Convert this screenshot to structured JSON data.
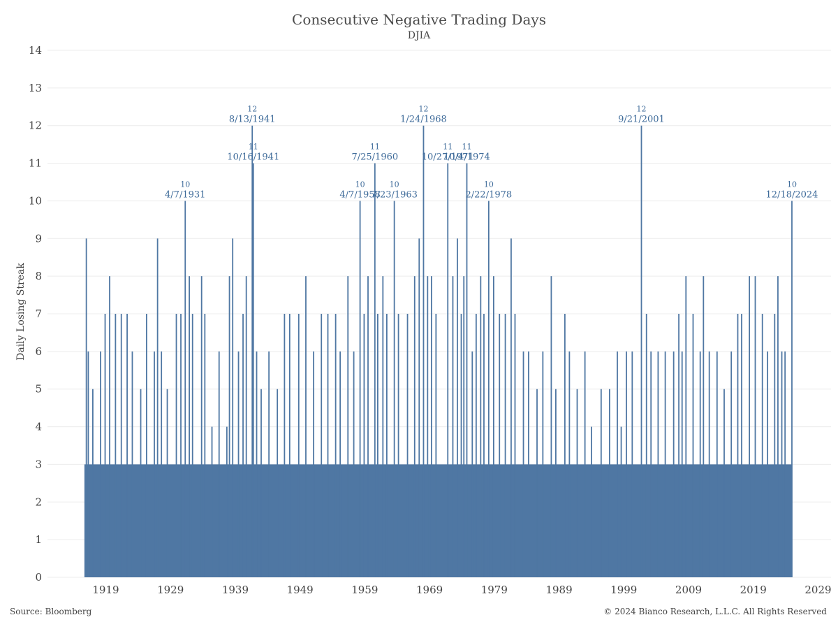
{
  "chart_data": {
    "type": "bar",
    "title": "Consecutive Negative Trading Days",
    "subtitle": "DJIA",
    "ylabel": "Daily Losing Streak",
    "xlabel": "",
    "xlim": [
      1910.0,
      2031.0
    ],
    "ylim": [
      0,
      14
    ],
    "y_ticks": [
      0,
      1,
      2,
      3,
      4,
      5,
      6,
      7,
      8,
      9,
      10,
      11,
      12,
      13,
      14
    ],
    "x_ticks": [
      1919,
      1929,
      1939,
      1949,
      1959,
      1969,
      1979,
      1989,
      1999,
      2009,
      2019,
      2029
    ],
    "grid": true,
    "bar_color": "#4f77a3",
    "label_color": "#3d6a99",
    "data_start_year": 1915.7,
    "data_end_year": 2024.97,
    "baseline_streak": 3,
    "series": [
      {
        "values": [
          {
            "x": 1916.0,
            "y": 9
          },
          {
            "x": 1916.3,
            "y": 6
          },
          {
            "x": 1916.6,
            "y": 2
          },
          {
            "x": 1917.0,
            "y": 5
          },
          {
            "x": 1918.2,
            "y": 6
          },
          {
            "x": 1918.9,
            "y": 7
          },
          {
            "x": 1919.6,
            "y": 8
          },
          {
            "x": 1920.5,
            "y": 7
          },
          {
            "x": 1921.4,
            "y": 7
          },
          {
            "x": 1922.3,
            "y": 7
          },
          {
            "x": 1923.1,
            "y": 6
          },
          {
            "x": 1924.4,
            "y": 5
          },
          {
            "x": 1925.3,
            "y": 7
          },
          {
            "x": 1926.5,
            "y": 6
          },
          {
            "x": 1927.6,
            "y": 6
          },
          {
            "x": 1927.0,
            "y": 9
          },
          {
            "x": 1928.5,
            "y": 5
          },
          {
            "x": 1929.9,
            "y": 7
          },
          {
            "x": 1930.6,
            "y": 7
          },
          {
            "x": 1931.27,
            "y": 10
          },
          {
            "x": 1931.9,
            "y": 8
          },
          {
            "x": 1932.4,
            "y": 7
          },
          {
            "x": 1933.8,
            "y": 8
          },
          {
            "x": 1934.3,
            "y": 7
          },
          {
            "x": 1935.4,
            "y": 4
          },
          {
            "x": 1936.5,
            "y": 6
          },
          {
            "x": 1937.7,
            "y": 4
          },
          {
            "x": 1938.1,
            "y": 8
          },
          {
            "x": 1938.6,
            "y": 9
          },
          {
            "x": 1939.5,
            "y": 6
          },
          {
            "x": 1940.2,
            "y": 7
          },
          {
            "x": 1940.7,
            "y": 8
          },
          {
            "x": 1941.62,
            "y": 12
          },
          {
            "x": 1941.79,
            "y": 11
          },
          {
            "x": 1942.3,
            "y": 6
          },
          {
            "x": 1943.0,
            "y": 5
          },
          {
            "x": 1944.2,
            "y": 6
          },
          {
            "x": 1945.5,
            "y": 5
          },
          {
            "x": 1946.6,
            "y": 7
          },
          {
            "x": 1947.4,
            "y": 7
          },
          {
            "x": 1948.8,
            "y": 7
          },
          {
            "x": 1949.9,
            "y": 8
          },
          {
            "x": 1951.1,
            "y": 6
          },
          {
            "x": 1952.3,
            "y": 7
          },
          {
            "x": 1953.3,
            "y": 7
          },
          {
            "x": 1954.5,
            "y": 7
          },
          {
            "x": 1955.2,
            "y": 6
          },
          {
            "x": 1956.4,
            "y": 8
          },
          {
            "x": 1957.3,
            "y": 6
          },
          {
            "x": 1958.27,
            "y": 10
          },
          {
            "x": 1958.9,
            "y": 7
          },
          {
            "x": 1959.5,
            "y": 8
          },
          {
            "x": 1960.56,
            "y": 11
          },
          {
            "x": 1961.0,
            "y": 7
          },
          {
            "x": 1961.8,
            "y": 8
          },
          {
            "x": 1962.4,
            "y": 7
          },
          {
            "x": 1963.56,
            "y": 10
          },
          {
            "x": 1964.2,
            "y": 7
          },
          {
            "x": 1965.6,
            "y": 7
          },
          {
            "x": 1966.7,
            "y": 8
          },
          {
            "x": 1967.4,
            "y": 9
          },
          {
            "x": 1968.07,
            "y": 12
          },
          {
            "x": 1968.7,
            "y": 8
          },
          {
            "x": 1969.3,
            "y": 8
          },
          {
            "x": 1970.0,
            "y": 7
          },
          {
            "x": 1971.82,
            "y": 11
          },
          {
            "x": 1972.6,
            "y": 8
          },
          {
            "x": 1973.3,
            "y": 9
          },
          {
            "x": 1973.9,
            "y": 7
          },
          {
            "x": 1974.3,
            "y": 8
          },
          {
            "x": 1974.76,
            "y": 11
          },
          {
            "x": 1975.6,
            "y": 6
          },
          {
            "x": 1976.2,
            "y": 7
          },
          {
            "x": 1976.9,
            "y": 8
          },
          {
            "x": 1977.4,
            "y": 7
          },
          {
            "x": 1978.14,
            "y": 10
          },
          {
            "x": 1978.9,
            "y": 8
          },
          {
            "x": 1979.8,
            "y": 7
          },
          {
            "x": 1980.7,
            "y": 7
          },
          {
            "x": 1981.6,
            "y": 9
          },
          {
            "x": 1982.2,
            "y": 7
          },
          {
            "x": 1983.5,
            "y": 6
          },
          {
            "x": 1984.3,
            "y": 6
          },
          {
            "x": 1985.6,
            "y": 5
          },
          {
            "x": 1986.5,
            "y": 6
          },
          {
            "x": 1987.8,
            "y": 8
          },
          {
            "x": 1988.5,
            "y": 5
          },
          {
            "x": 1989.9,
            "y": 7
          },
          {
            "x": 1990.6,
            "y": 6
          },
          {
            "x": 1991.8,
            "y": 5
          },
          {
            "x": 1993.0,
            "y": 6
          },
          {
            "x": 1994.0,
            "y": 4
          },
          {
            "x": 1995.5,
            "y": 5
          },
          {
            "x": 1996.8,
            "y": 5
          },
          {
            "x": 1998.0,
            "y": 6
          },
          {
            "x": 1998.6,
            "y": 4
          },
          {
            "x": 1999.4,
            "y": 6
          },
          {
            "x": 2000.3,
            "y": 6
          },
          {
            "x": 2001.72,
            "y": 12
          },
          {
            "x": 2002.5,
            "y": 7
          },
          {
            "x": 2003.2,
            "y": 6
          },
          {
            "x": 2004.3,
            "y": 6
          },
          {
            "x": 2005.4,
            "y": 6
          },
          {
            "x": 2006.7,
            "y": 6
          },
          {
            "x": 2007.5,
            "y": 7
          },
          {
            "x": 2008.0,
            "y": 6
          },
          {
            "x": 2008.6,
            "y": 8
          },
          {
            "x": 2009.7,
            "y": 7
          },
          {
            "x": 2010.8,
            "y": 6
          },
          {
            "x": 2011.3,
            "y": 8
          },
          {
            "x": 2012.2,
            "y": 6
          },
          {
            "x": 2013.4,
            "y": 6
          },
          {
            "x": 2014.5,
            "y": 5
          },
          {
            "x": 2015.6,
            "y": 6
          },
          {
            "x": 2016.6,
            "y": 7
          },
          {
            "x": 2017.2,
            "y": 7
          },
          {
            "x": 2018.4,
            "y": 8
          },
          {
            "x": 2019.3,
            "y": 8
          },
          {
            "x": 2020.4,
            "y": 7
          },
          {
            "x": 2021.2,
            "y": 6
          },
          {
            "x": 2022.3,
            "y": 7
          },
          {
            "x": 2022.8,
            "y": 8
          },
          {
            "x": 2023.4,
            "y": 6
          },
          {
            "x": 2023.9,
            "y": 6
          },
          {
            "x": 2024.96,
            "y": 10
          }
        ]
      }
    ],
    "annotations": [
      {
        "x": 1931.27,
        "y": 10,
        "value": "10",
        "date": "4/7/1931"
      },
      {
        "x": 1941.62,
        "y": 12,
        "value": "12",
        "date": "8/13/1941"
      },
      {
        "x": 1941.79,
        "y": 11,
        "value": "11",
        "date": "10/16/1941"
      },
      {
        "x": 1958.27,
        "y": 10,
        "value": "10",
        "date": "4/7/1958"
      },
      {
        "x": 1960.56,
        "y": 11,
        "value": "11",
        "date": "7/25/1960"
      },
      {
        "x": 1963.56,
        "y": 10,
        "value": "10",
        "date": "7/23/1963"
      },
      {
        "x": 1968.07,
        "y": 12,
        "value": "12",
        "date": "1/24/1968"
      },
      {
        "x": 1971.82,
        "y": 11,
        "value": "11",
        "date": "10/27/1971"
      },
      {
        "x": 1974.76,
        "y": 11,
        "value": "11",
        "date": "10/4/1974"
      },
      {
        "x": 1978.14,
        "y": 10,
        "value": "10",
        "date": "2/22/1978"
      },
      {
        "x": 2001.72,
        "y": 12,
        "value": "12",
        "date": "9/21/2001"
      },
      {
        "x": 2024.96,
        "y": 10,
        "value": "10",
        "date": "12/18/2024"
      }
    ]
  },
  "footer": {
    "source": "Source: Bloomberg",
    "copyright": "© 2024 Bianco Research, L.L.C. All Rights Reserved"
  }
}
